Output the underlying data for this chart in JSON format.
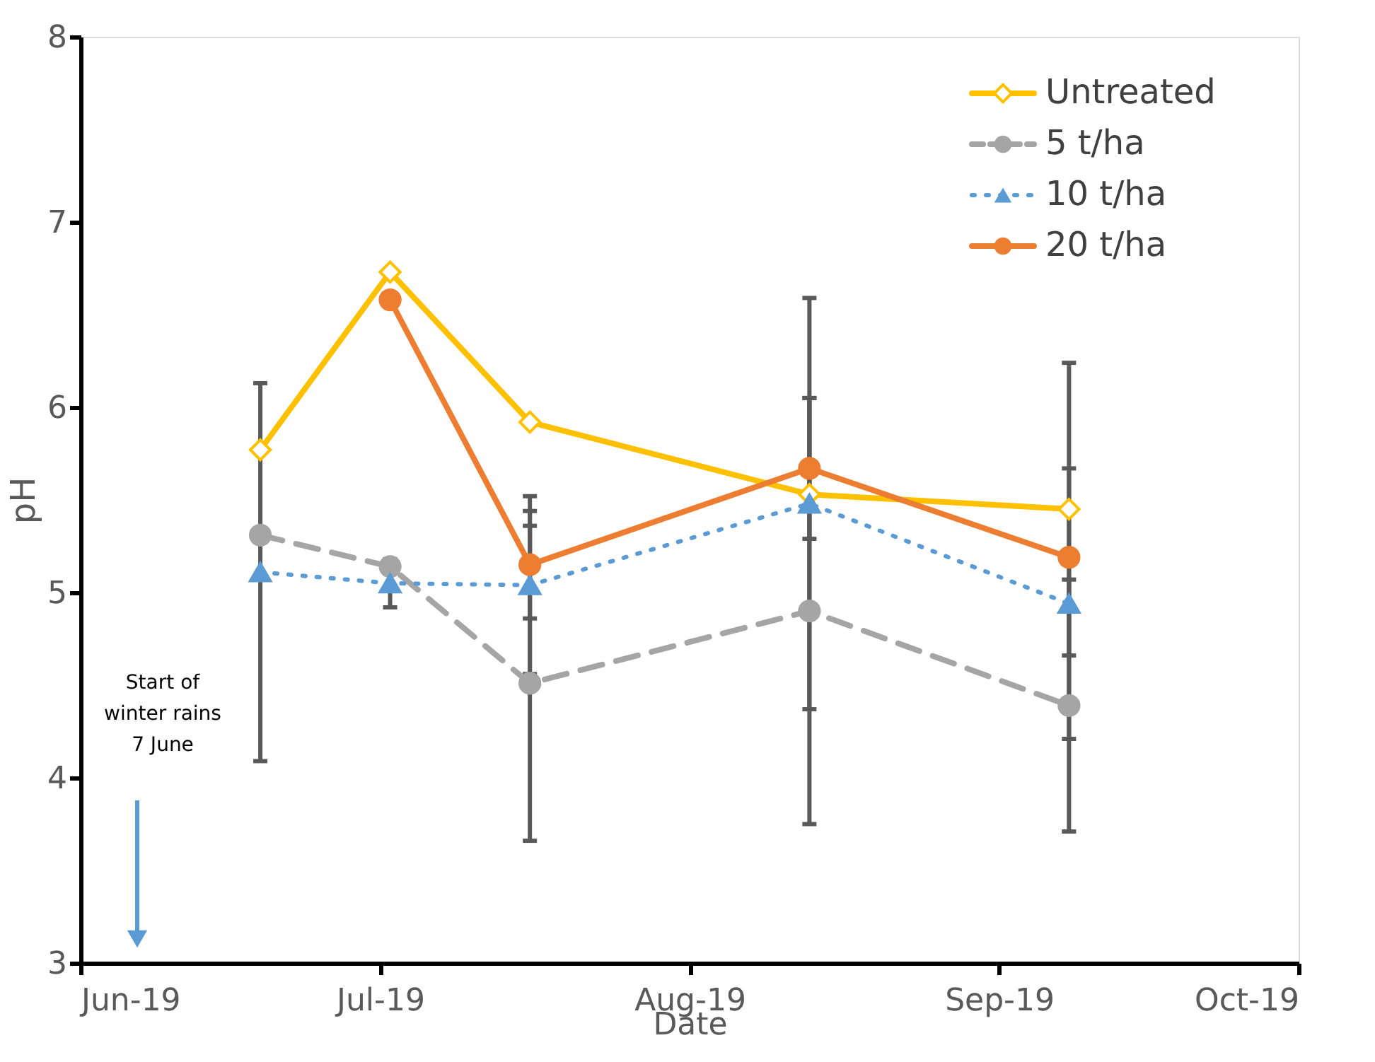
{
  "chart_data": {
    "type": "line",
    "xlabel": "Date",
    "ylabel": "pH",
    "x": [
      "2019-06-19",
      "2019-07-02",
      "2019-07-16",
      "2019-08-13",
      "2019-09-08"
    ],
    "series": [
      {
        "name": "Untreated",
        "color": "#ffc000",
        "marker": "diamond",
        "line_style": "solid",
        "values": [
          5.77,
          6.73,
          5.92,
          5.53,
          5.45
        ],
        "errors": [
          null,
          null,
          null,
          null,
          0.79
        ]
      },
      {
        "name": "5 t/ha",
        "color": "#a5a5a5",
        "marker": "circle",
        "line_style": "dashed",
        "values": [
          5.31,
          5.14,
          4.51,
          4.9,
          4.39
        ],
        "errors": [
          null,
          null,
          0.85,
          1.15,
          0.68
        ]
      },
      {
        "name": "10 t/ha",
        "color": "#5b9bd5",
        "marker": "triangle",
        "line_style": "dotted",
        "values": [
          5.11,
          5.05,
          5.04,
          5.48,
          4.94
        ],
        "errors": [
          1.02,
          0.13,
          0.48,
          1.11,
          0.73
        ]
      },
      {
        "name": "20 t/ha",
        "color": "#ed7d31",
        "marker": "circle",
        "line_style": "solid",
        "values": [
          null,
          6.58,
          5.15,
          5.67,
          5.19
        ],
        "errors": [
          null,
          null,
          0.29,
          0.38,
          null
        ]
      }
    ],
    "xlim": [
      "2019-06-01",
      "2019-10-01"
    ],
    "xticks": [
      {
        "value": "2019-06-01",
        "label": "Jun-19"
      },
      {
        "value": "2019-07-01",
        "label": "Jul-19"
      },
      {
        "value": "2019-08-01",
        "label": "Aug-19"
      },
      {
        "value": "2019-09-01",
        "label": "Sep-19"
      },
      {
        "value": "2019-10-01",
        "label": "Oct-19"
      }
    ],
    "ylim": [
      3,
      8
    ],
    "yticks": [
      3,
      4,
      5,
      6,
      7,
      8
    ],
    "grid": false,
    "legend": "top right",
    "annotations": [
      "Start of\nwinter rains\n7 June"
    ]
  }
}
